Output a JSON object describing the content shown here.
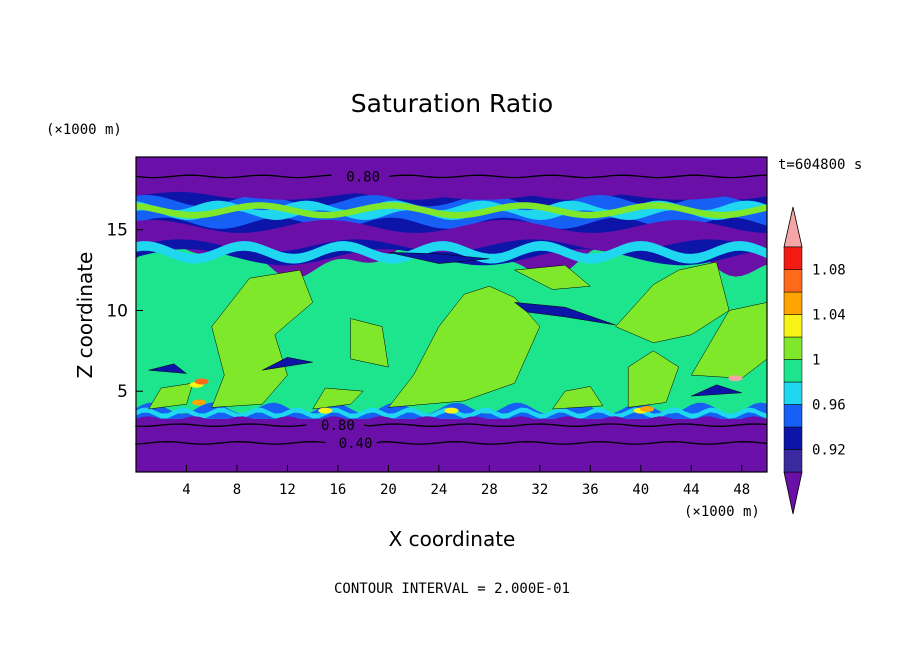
{
  "chart_data": {
    "type": "heatmap",
    "title": "Saturation Ratio",
    "xlabel": "X coordinate",
    "ylabel": "Z coordinate",
    "x_unit": "(×1000 m)",
    "y_unit": "(×1000 m)",
    "time_label": "t=604800 s",
    "footer": "CONTOUR INTERVAL = 2.000E-01",
    "xlim": [
      0,
      50
    ],
    "ylim": [
      0,
      19.5
    ],
    "x_ticks": [
      4,
      8,
      12,
      16,
      20,
      24,
      28,
      32,
      36,
      40,
      44,
      48
    ],
    "x_tick_labels": [
      "4",
      "8",
      "12",
      "16",
      "20",
      "24",
      "28",
      "32",
      "36",
      "40",
      "44",
      "48"
    ],
    "y_ticks": [
      5,
      10,
      15
    ],
    "y_tick_labels": [
      "5",
      "10",
      "15"
    ],
    "colorbar": {
      "levels": [
        0.92,
        0.94,
        0.96,
        0.98,
        1.0,
        1.02,
        1.04,
        1.06,
        1.08,
        1.1
      ],
      "labels": [
        "0.92",
        "0.96",
        "1",
        "1.04",
        "1.08"
      ],
      "label_values": [
        0.92,
        0.96,
        1.0,
        1.04,
        1.08
      ],
      "colors": [
        "#6a0fa8",
        "#3a2aa0",
        "#0d14a8",
        "#1660f5",
        "#1fd8f0",
        "#1de58e",
        "#7fe82a",
        "#f8f218",
        "#ffa400",
        "#ff6a1a",
        "#f21a12",
        "#f5a5a5"
      ],
      "extend": "both"
    },
    "contours": [
      {
        "label": "0.80",
        "z": 18.3,
        "label_x": 18.0
      },
      {
        "label": "0.80",
        "z": 2.9,
        "label_x": 16.0
      },
      {
        "label": "0.40",
        "z": 1.8,
        "label_x": 17.4
      }
    ],
    "bands": [
      {
        "z_range": [
          0,
          3.3
        ],
        "value_class": "below 0.92"
      },
      {
        "z_range": [
          3.3,
          3.9
        ],
        "value_class": "0.92-1.08 mixed"
      },
      {
        "z_range": [
          3.9,
          13.3
        ],
        "value_class": "0.98-1.02"
      },
      {
        "z_range": [
          13.3,
          17.0
        ],
        "value_class": "0.92-1.00 mixed"
      },
      {
        "z_range": [
          17.0,
          19.5
        ],
        "value_class": "below 0.92"
      }
    ]
  }
}
